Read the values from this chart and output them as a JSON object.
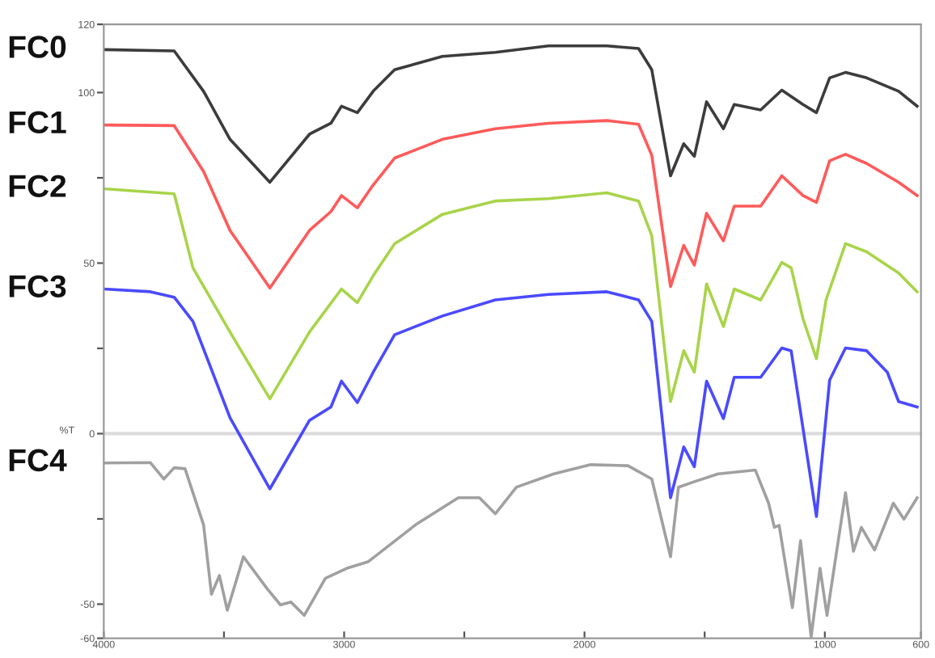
{
  "chart_data": {
    "type": "line",
    "ylabel": "%T",
    "xlim": [
      4000,
      600
    ],
    "ylim": [
      -60,
      120
    ],
    "xticks": [
      4000,
      {
        "value": 3500,
        "label": null
      },
      3000,
      {
        "value": 2500,
        "label": null
      },
      2000,
      {
        "value": 1500,
        "label": null
      },
      1000,
      600
    ],
    "yticks": [
      -60,
      -50,
      {
        "value": -25,
        "label": null
      },
      0,
      {
        "value": 25,
        "label": null
      },
      50,
      {
        "value": 75,
        "label": null
      },
      100,
      120
    ],
    "grid": false,
    "legend": false,
    "marker": "none",
    "line_style": "solid",
    "ref_lines": [
      {
        "axis": "y",
        "value": 0,
        "color": "#dcdcdc"
      }
    ],
    "series": [
      {
        "name": "FC0",
        "color": "#3c3c3c",
        "x": [
          4000,
          3707,
          3585,
          3475,
          3309,
          3144,
          3055,
          3011,
          2945,
          2879,
          2790,
          2591,
          2371,
          2150,
          1907,
          1775,
          1720,
          1642,
          1587,
          1543,
          1492,
          1422,
          1377,
          1267,
          1179,
          1091,
          1035,
          980,
          914,
          826,
          693,
          616
        ],
        "values": [
          112.6,
          112.2,
          100.4,
          86.3,
          73.7,
          87.8,
          91,
          96,
          94.1,
          100.4,
          106.7,
          110.6,
          111.8,
          113.7,
          113.7,
          112.9,
          106.7,
          75.6,
          85,
          81.3,
          97.3,
          89.4,
          96.5,
          94.9,
          100.7,
          96.5,
          94.1,
          104.3,
          105.9,
          104.3,
          100.4,
          96
        ]
      },
      {
        "name": "FC1",
        "color": "#ff5a5a",
        "x": [
          4000,
          3707,
          3585,
          3475,
          3309,
          3144,
          3055,
          3011,
          2945,
          2879,
          2790,
          2591,
          2371,
          2150,
          1907,
          1775,
          1720,
          1642,
          1587,
          1543,
          1492,
          1422,
          1377,
          1267,
          1179,
          1091,
          1035,
          980,
          914,
          826,
          693,
          616
        ],
        "values": [
          90.5,
          90.3,
          76.9,
          59.6,
          42.7,
          59.6,
          65.1,
          69.8,
          66.2,
          72.9,
          80.8,
          86.3,
          89.4,
          91,
          91.8,
          90.7,
          81.6,
          43.1,
          55.2,
          49.4,
          64.6,
          56.5,
          66.7,
          66.7,
          75.6,
          69.8,
          67.8,
          80,
          81.9,
          79.2,
          73.7,
          69.8
        ]
      },
      {
        "name": "FC2",
        "color": "#a8d44a",
        "x": [
          4000,
          3707,
          3629,
          3475,
          3309,
          3144,
          3011,
          2945,
          2879,
          2790,
          2591,
          2371,
          2150,
          1907,
          1775,
          1720,
          1642,
          1587,
          1543,
          1492,
          1422,
          1377,
          1267,
          1179,
          1140,
          1091,
          1035,
          995,
          914,
          826,
          693,
          616
        ],
        "values": [
          71.8,
          70.3,
          48.6,
          29.8,
          10.2,
          29.8,
          42.4,
          38.4,
          46.3,
          55.7,
          64.3,
          68.2,
          68.9,
          70.6,
          68.2,
          58,
          9.4,
          24.3,
          18,
          43.9,
          31.4,
          42.4,
          39.2,
          50.2,
          48.6,
          33.7,
          22,
          39.2,
          55.7,
          53.3,
          47.1,
          41.6
        ]
      },
      {
        "name": "FC3",
        "color": "#4a4aff",
        "x": [
          4000,
          3806,
          3707,
          3629,
          3475,
          3309,
          3144,
          3055,
          3011,
          2945,
          2879,
          2790,
          2591,
          2371,
          2150,
          1907,
          1775,
          1720,
          1642,
          1587,
          1543,
          1492,
          1422,
          1377,
          1267,
          1179,
          1140,
          1091,
          1035,
          980,
          914,
          826,
          740,
          693,
          616
        ],
        "values": [
          42.4,
          41.6,
          40,
          32.9,
          4.7,
          -16.2,
          3.9,
          7.8,
          15.4,
          9.1,
          18,
          29,
          34.5,
          39.2,
          40.8,
          41.6,
          39.2,
          32.9,
          -18.8,
          -3.9,
          -9.7,
          15.4,
          4.4,
          16.5,
          16.5,
          25.1,
          24.3,
          1.6,
          -24.3,
          15.7,
          25.1,
          24.3,
          18,
          9.4,
          7.8
        ]
      },
      {
        "name": "FC4",
        "color": "#a0a0a0",
        "x": [
          4000,
          3806,
          3750,
          3707,
          3662,
          3585,
          3552,
          3519,
          3486,
          3419,
          3320,
          3265,
          3221,
          3166,
          3078,
          2989,
          2901,
          2702,
          2525,
          2437,
          2371,
          2283,
          2128,
          1974,
          1819,
          1720,
          1642,
          1609,
          1543,
          1444,
          1289,
          1234,
          1210,
          1190,
          1135,
          1101,
          1057,
          1020,
          991,
          914,
          881,
          848,
          793,
          715,
          671,
          616
        ],
        "values": [
          -8.6,
          -8.5,
          -13.3,
          -10,
          -10.3,
          -26.7,
          -47.1,
          -41.6,
          -51.8,
          -36.1,
          -45.5,
          -50.2,
          -49.4,
          -53.3,
          -42.4,
          -39.5,
          -37.6,
          -26.7,
          -18.8,
          -18.8,
          -23.5,
          -15.7,
          -11.8,
          -9.1,
          -9.4,
          -13.3,
          -36.1,
          -15.7,
          -14.1,
          -11.8,
          -10.7,
          -20.4,
          -27.5,
          -26.9,
          -51,
          -31.4,
          -59.6,
          -39.5,
          -53.3,
          -17.3,
          -34.5,
          -27.5,
          -34.1,
          -20.4,
          -25.1,
          -18.8
        ]
      }
    ]
  }
}
